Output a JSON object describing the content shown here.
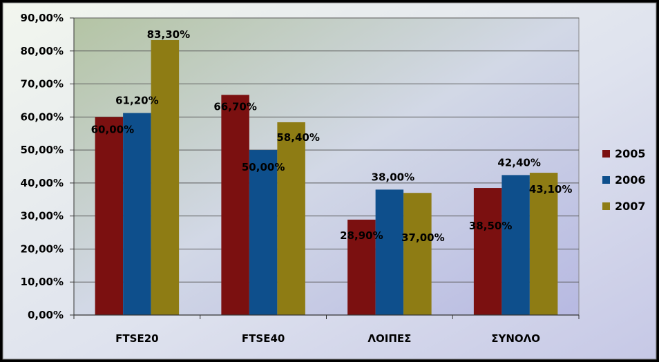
{
  "chart_data": {
    "type": "bar",
    "categories": [
      "FTSE20",
      "FTSE40",
      "ΛΟΙΠΕΣ",
      "ΣΥΝΟΛΟ"
    ],
    "series": [
      {
        "name": "2005",
        "values": [
          60.0,
          66.7,
          28.9,
          38.5
        ],
        "labels": [
          "60,00%",
          "66,70%",
          "28,90%",
          "38,50%"
        ],
        "color": "#7B1010"
      },
      {
        "name": "2006",
        "values": [
          61.2,
          50.0,
          38.0,
          42.4
        ],
        "labels": [
          "61,20%",
          "50,00%",
          "38,00%",
          "42,40%"
        ],
        "color": "#0E4F8C"
      },
      {
        "name": "2007",
        "values": [
          83.3,
          58.4,
          37.0,
          43.1
        ],
        "labels": [
          "83,30%",
          "58,40%",
          "37,00%",
          "43,10%"
        ],
        "color": "#8E7C14"
      }
    ],
    "ylim": [
      0,
      90
    ],
    "yticks": [
      "0,00%",
      "10,00%",
      "20,00%",
      "30,00%",
      "40,00%",
      "50,00%",
      "60,00%",
      "70,00%",
      "80,00%",
      "90,00%"
    ],
    "grid": true,
    "legend": "right",
    "title": "",
    "xlabel": "",
    "ylabel": ""
  }
}
